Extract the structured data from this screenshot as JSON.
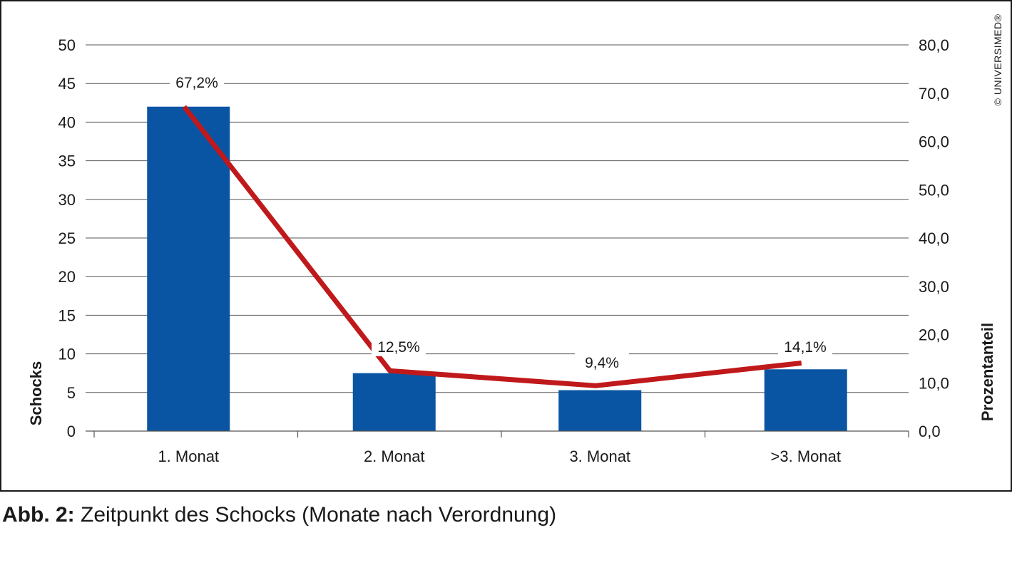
{
  "chart_data": {
    "type": "bar",
    "categories": [
      "1. Monat",
      "2. Monat",
      "3. Monat",
      ">3. Monat"
    ],
    "series": [
      {
        "values": [
          42,
          7.5,
          5.3,
          8
        ],
        "axis": "left",
        "kind": "bar",
        "color": "#0a55a3"
      },
      {
        "values": [
          67.2,
          12.5,
          9.4,
          14.1
        ],
        "axis": "right",
        "kind": "line",
        "color": "#c0191b",
        "data_labels": [
          "67,2%",
          "12,5%",
          "9,4%",
          "14,1%"
        ]
      }
    ],
    "ylabel": "Schocks",
    "y2label": "Prozentanteil",
    "ylim": [
      0,
      50
    ],
    "y2lim": [
      0,
      80
    ],
    "yticks": [
      "0",
      "5",
      "10",
      "15",
      "20",
      "25",
      "30",
      "35",
      "40",
      "45",
      "50"
    ],
    "y2ticks": [
      "0,0",
      "10,0",
      "20,0",
      "30,0",
      "40,0",
      "50,0",
      "60,0",
      "70,0",
      "80,0"
    ],
    "grid": true,
    "legend": "none"
  },
  "copyright": "© UNIVERSIMED®",
  "caption": {
    "label": "Abb. 2:",
    "text": " Zeitpunkt des Schocks (Monate nach Verordnung)"
  }
}
